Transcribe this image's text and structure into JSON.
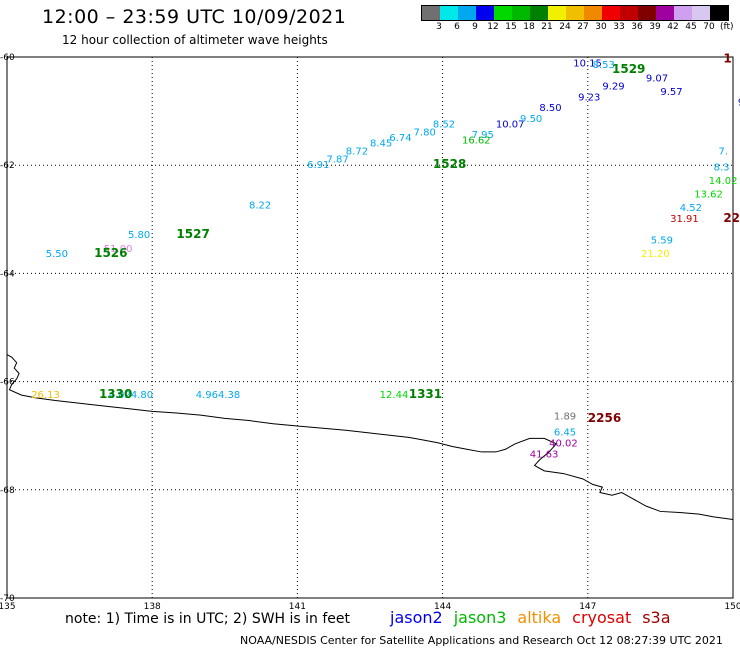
{
  "title": "12:00 – 23:59 UTC 10/09/2021",
  "subtitle": "12 hour collection of altimeter wave heights",
  "colorbar": {
    "colors": [
      "#707070",
      "#00e8e8",
      "#00a8f0",
      "#0000f0",
      "#00d800",
      "#00b800",
      "#008000",
      "#f0f000",
      "#f0c000",
      "#f08800",
      "#f00000",
      "#c00000",
      "#800000",
      "#a000a0",
      "#d0a0f0",
      "#d8c8f0",
      "#000000"
    ],
    "labels": [
      "3",
      "6",
      "9",
      "12",
      "15",
      "18",
      "21",
      "24",
      "27",
      "30",
      "33",
      "36",
      "39",
      "42",
      "45",
      "70"
    ],
    "unit": "(ft)"
  },
  "axes": {
    "lon_labels": [
      "135",
      "138",
      "141",
      "144",
      "147",
      "150"
    ],
    "lat_labels": [
      "-60",
      "-62",
      "-64",
      "-66",
      "-68",
      "-70"
    ]
  },
  "observations": [
    {
      "text": "10.15",
      "lon": 146.7,
      "lat": -60.18,
      "color": "#0000d0"
    },
    {
      "text": "8.53",
      "lon": 147.1,
      "lat": -60.2,
      "color": "#00a8f0"
    },
    {
      "text": "9.07",
      "lon": 148.2,
      "lat": -60.45,
      "color": "#0000d0"
    },
    {
      "text": "9.57",
      "lon": 148.5,
      "lat": -60.7,
      "color": "#0000d0"
    },
    {
      "text": "9.29",
      "lon": 147.3,
      "lat": -60.6,
      "color": "#0000d0"
    },
    {
      "text": "9.23",
      "lon": 146.8,
      "lat": -60.8,
      "color": "#0000d0"
    },
    {
      "text": "8.50",
      "lon": 146.0,
      "lat": -61.0,
      "color": "#0000d0"
    },
    {
      "text": "10.07",
      "lon": 145.1,
      "lat": -61.3,
      "color": "#0000d0"
    },
    {
      "text": "9.50",
      "lon": 145.6,
      "lat": -61.2,
      "color": "#00a8f0"
    },
    {
      "text": "7.95",
      "lon": 144.6,
      "lat": -61.5,
      "color": "#00a8f0"
    },
    {
      "text": "16.62",
      "lon": 144.4,
      "lat": -61.6,
      "color": "#00b800"
    },
    {
      "text": "8.22",
      "lon": 140.0,
      "lat": -62.8,
      "color": "#00a8f0"
    },
    {
      "text": "6.91",
      "lon": 141.2,
      "lat": -62.05,
      "color": "#00a8f0"
    },
    {
      "text": "7.87",
      "lon": 141.6,
      "lat": -61.95,
      "color": "#00a8f0"
    },
    {
      "text": "8.72",
      "lon": 142.0,
      "lat": -61.8,
      "color": "#00a8f0"
    },
    {
      "text": "8.45",
      "lon": 142.5,
      "lat": -61.65,
      "color": "#00a8f0"
    },
    {
      "text": "6.74",
      "lon": 142.9,
      "lat": -61.55,
      "color": "#00a8f0"
    },
    {
      "text": "7.80",
      "lon": 143.4,
      "lat": -61.45,
      "color": "#00a8f0"
    },
    {
      "text": "8.52",
      "lon": 143.8,
      "lat": -61.3,
      "color": "#00a8f0"
    },
    {
      "text": "5.50",
      "lon": 135.8,
      "lat": -63.7,
      "color": "#00a8f0"
    },
    {
      "text": "5.80",
      "lon": 137.5,
      "lat": -63.35,
      "color": "#00a8f0"
    },
    {
      "text": "51.00",
      "lon": 137.0,
      "lat": -63.6,
      "color": "#e080e0"
    },
    {
      "text": "7.",
      "lon": 149.7,
      "lat": -61.8,
      "color": "#00a8f0"
    },
    {
      "text": "8.3",
      "lon": 149.6,
      "lat": -62.1,
      "color": "#00a8f0"
    },
    {
      "text": "14.02",
      "lon": 149.5,
      "lat": -62.35,
      "color": "#00d800"
    },
    {
      "text": "13.62",
      "lon": 149.2,
      "lat": -62.6,
      "color": "#00d800"
    },
    {
      "text": "4.52",
      "lon": 148.9,
      "lat": -62.85,
      "color": "#00a8f0"
    },
    {
      "text": "31.91",
      "lon": 148.7,
      "lat": -63.05,
      "color": "#c00000"
    },
    {
      "text": "5.59",
      "lon": 148.3,
      "lat": -63.45,
      "color": "#00a8f0"
    },
    {
      "text": "21.20",
      "lon": 148.1,
      "lat": -63.7,
      "color": "#f0f000"
    },
    {
      "text": "26.13",
      "lon": 135.5,
      "lat": -66.3,
      "color": "#f0c000"
    },
    {
      "text": "4.024.80",
      "lon": 137.1,
      "lat": -66.3,
      "color": "#00a8f0"
    },
    {
      "text": "4.964.38",
      "lon": 138.9,
      "lat": -66.3,
      "color": "#00a8f0"
    },
    {
      "text": "12.44",
      "lon": 142.7,
      "lat": -66.3,
      "color": "#00d800"
    },
    {
      "text": "1.89",
      "lon": 146.3,
      "lat": -66.7,
      "color": "#707070"
    },
    {
      "text": "6.45",
      "lon": 146.3,
      "lat": -67.0,
      "color": "#00a8f0"
    },
    {
      "text": "40.02",
      "lon": 146.2,
      "lat": -67.2,
      "color": "#a000a0"
    },
    {
      "text": "41.63",
      "lon": 145.8,
      "lat": -67.4,
      "color": "#a000a0"
    },
    {
      "text": "9.",
      "lon": 150.1,
      "lat": -60.9,
      "color": "#0000d0"
    }
  ],
  "pass_labels": [
    {
      "text": "1526",
      "lon": 136.8,
      "lat": -63.7,
      "color": "#008000"
    },
    {
      "text": "1527",
      "lon": 138.5,
      "lat": -63.35,
      "color": "#008000"
    },
    {
      "text": "1528",
      "lon": 143.8,
      "lat": -62.05,
      "color": "#008000"
    },
    {
      "text": "1529",
      "lon": 147.5,
      "lat": -60.3,
      "color": "#008000"
    },
    {
      "text": "1330",
      "lon": 136.9,
      "lat": -66.3,
      "color": "#008000"
    },
    {
      "text": "1331",
      "lon": 143.3,
      "lat": -66.3,
      "color": "#008000"
    },
    {
      "text": "2256",
      "lon": 147.0,
      "lat": -66.75,
      "color": "#800000"
    },
    {
      "text": "22",
      "lon": 149.8,
      "lat": -63.05,
      "color": "#800000"
    },
    {
      "text": "1",
      "lon": 149.8,
      "lat": -60.1,
      "color": "#800000"
    }
  ],
  "legend_note": "note:  1) Time is in UTC; 2) SWH is in feet",
  "satellites": [
    {
      "name": "jason2",
      "color": "#0000f0"
    },
    {
      "name": "jason3",
      "color": "#00b800"
    },
    {
      "name": "altika",
      "color": "#f09000"
    },
    {
      "name": "cryosat",
      "color": "#e00000"
    },
    {
      "name": "s3a",
      "color": "#a00000"
    }
  ],
  "footer": "NOAA/NESDIS Center for Satellite Applications and Research    Oct 12 08:27:39 UTC 2021"
}
